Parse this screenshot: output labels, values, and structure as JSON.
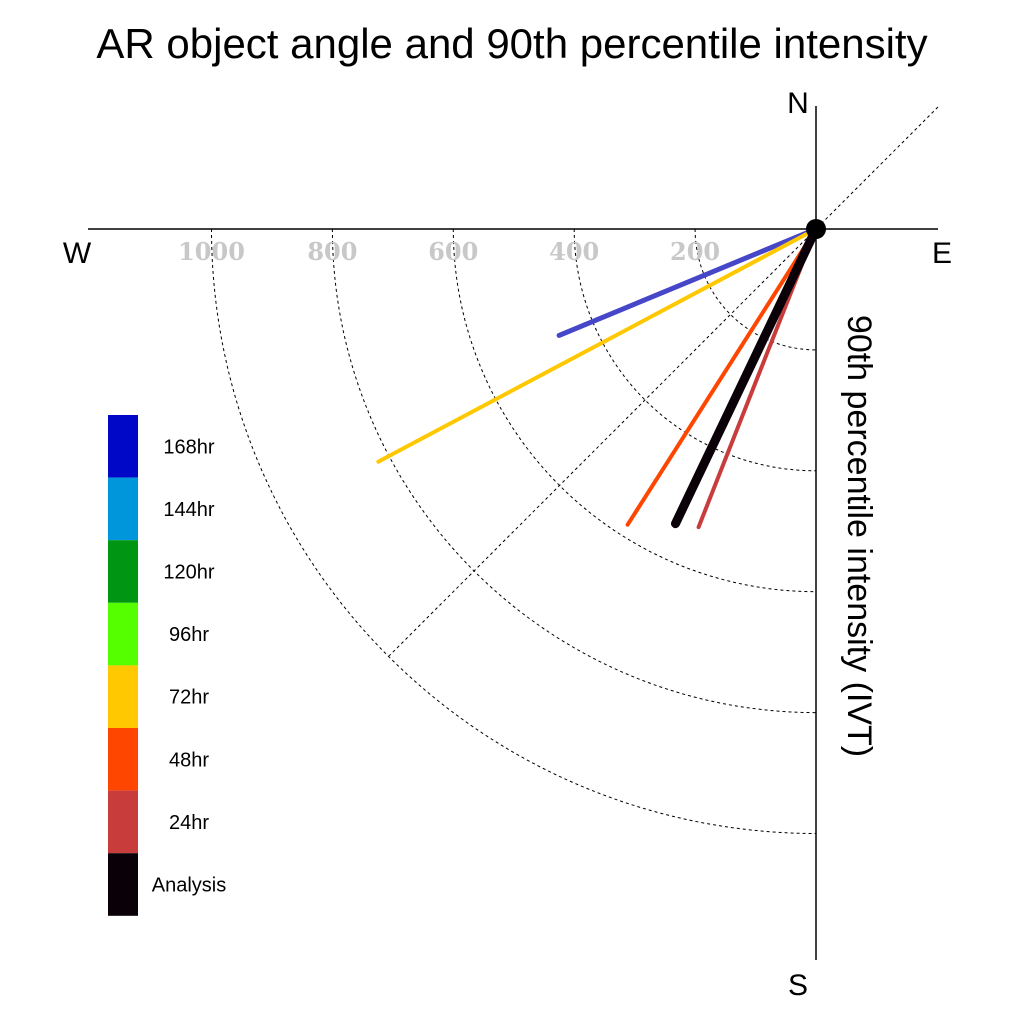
{
  "chart_data": {
    "type": "polar-vector",
    "title": "AR object angle and 90th percentile intensity",
    "compass": {
      "north": "N",
      "south": "S",
      "east": "E",
      "west": "W"
    },
    "radial_axis_label": "90th percentile intensity (IVT)",
    "radial_ticks": [
      200,
      400,
      600,
      800,
      1000
    ],
    "radial_max": 1000,
    "grid": true,
    "diagonal_guides": true,
    "legend_position": "left",
    "legend": [
      {
        "label": "168hr",
        "color": "#0008C8"
      },
      {
        "label": "144hr",
        "color": "#0096DC"
      },
      {
        "label": "120hr",
        "color": "#009614"
      },
      {
        "label": "96hr",
        "color": "#55FF00"
      },
      {
        "label": "72hr",
        "color": "#FFC800"
      },
      {
        "label": "48hr",
        "color": "#FF4600"
      },
      {
        "label": "24hr",
        "color": "#C83C3C"
      },
      {
        "label": "Analysis",
        "color": "#0A0008"
      }
    ],
    "series": [
      {
        "name": "168hr",
        "color": "#4646C8",
        "intensity": 460,
        "angle_below_west_deg": 22.5,
        "width": 5
      },
      {
        "name": "72hr",
        "color": "#FFC800",
        "intensity": 820,
        "angle_below_west_deg": 28,
        "width": 4
      },
      {
        "name": "48hr",
        "color": "#FF4600",
        "intensity": 580,
        "angle_below_west_deg": 57.5,
        "width": 4
      },
      {
        "name": "24hr",
        "color": "#C83C3C",
        "intensity": 530,
        "angle_below_west_deg": 68.5,
        "width": 4
      },
      {
        "name": "Analysis",
        "color": "#0A0008",
        "intensity": 540,
        "angle_below_west_deg": 64.5,
        "width": 9
      }
    ]
  }
}
